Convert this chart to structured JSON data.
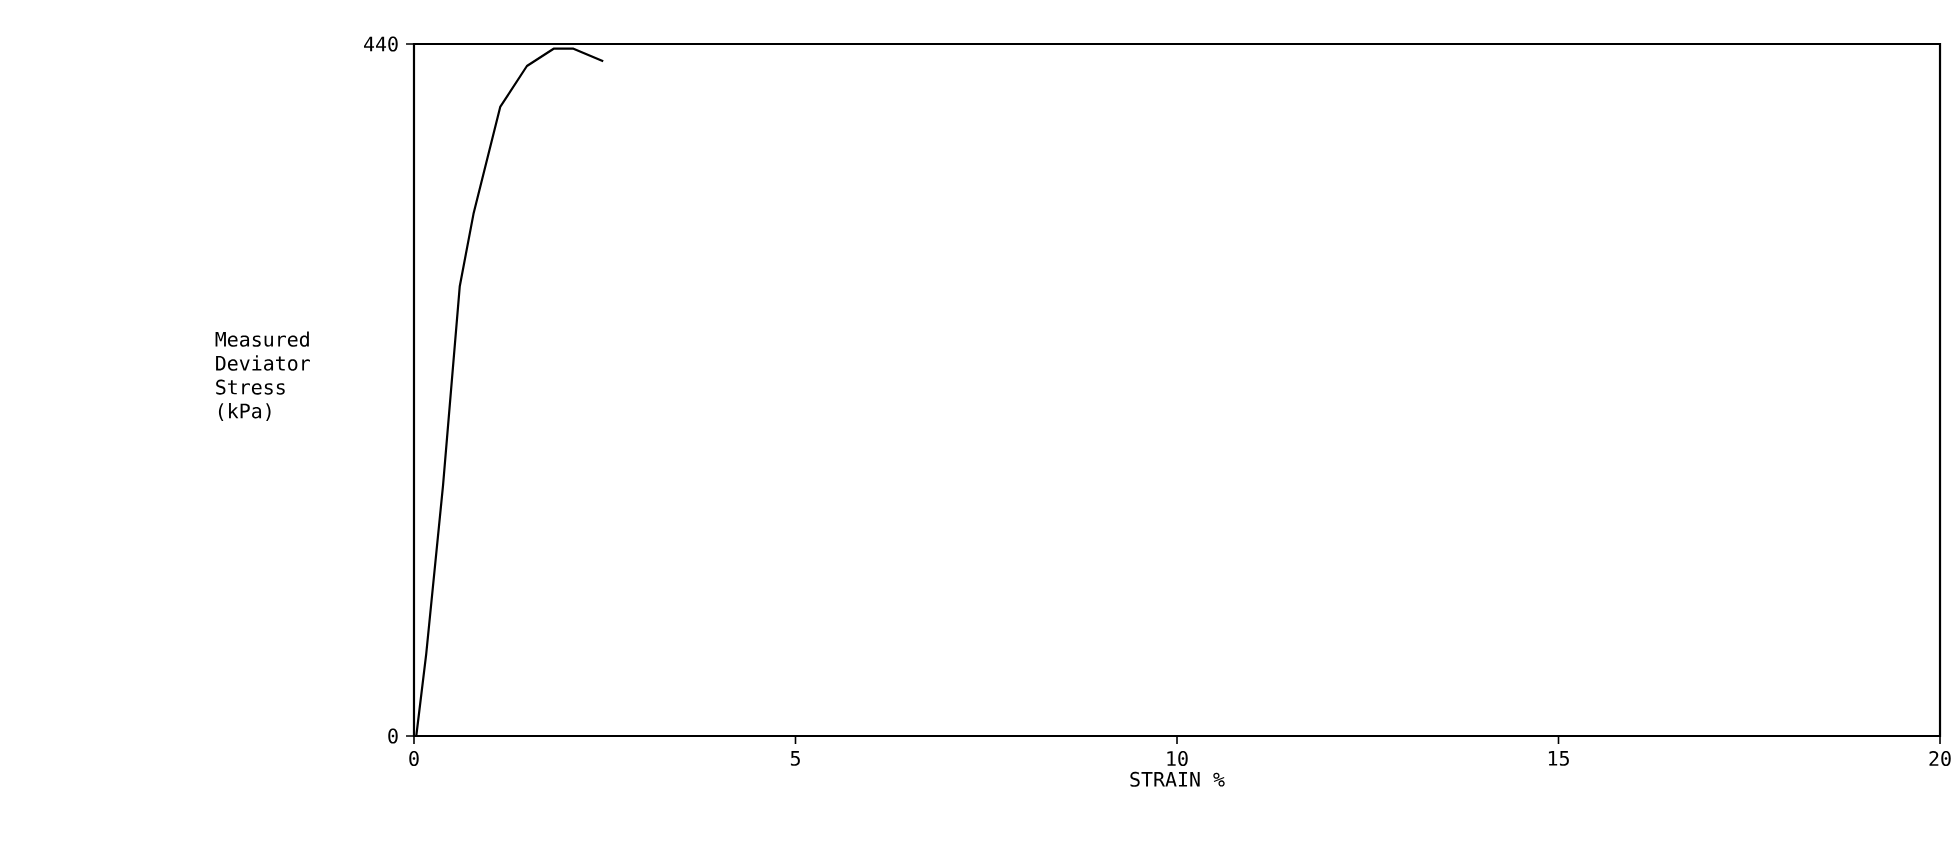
{
  "chart_data": {
    "type": "line",
    "xlabel": "STRAIN %",
    "ylabel": "Measured Deviator Stress (kPa)",
    "series": [
      {
        "color": "#000000",
        "x": [
          0.03,
          0.16,
          0.38,
          0.6,
          0.78,
          1.13,
          1.48,
          1.83,
          2.09,
          2.48
        ],
        "values": [
          0,
          52,
          159,
          286,
          332,
          400,
          426,
          437,
          437,
          429
        ]
      }
    ],
    "xlim": [
      0,
      20
    ],
    "ylim": [
      0,
      440
    ],
    "xticks": [
      0,
      5,
      10,
      15,
      20
    ],
    "yticks": [
      0,
      440
    ],
    "grid": false,
    "marker": "none",
    "line_style": "solid"
  }
}
